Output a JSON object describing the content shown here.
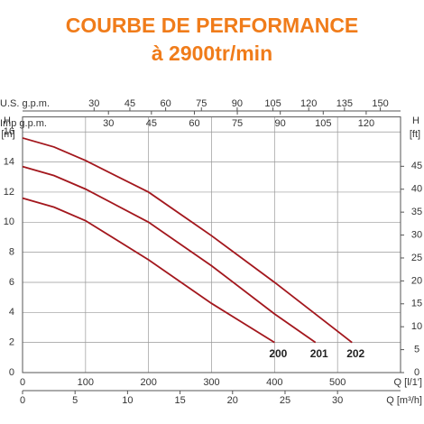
{
  "chart_data": {
    "type": "line",
    "title": "COURBE DE PERFORMANCE",
    "subtitle": "à 2900tr/min",
    "title_color": "#f07c1a",
    "xlabel": "Q [l/1']",
    "xlim": [
      0,
      600
    ],
    "xticks": [
      0,
      100,
      200,
      300,
      400,
      500
    ],
    "ylabel": [
      "H",
      "[m]"
    ],
    "ylim": [
      0,
      17
    ],
    "yticks": [
      0,
      2,
      4,
      6,
      8,
      10,
      12,
      14,
      16
    ],
    "y2label": [
      "H",
      "[ft]"
    ],
    "y2lim": [
      0,
      55.77
    ],
    "y2ticks": [
      0,
      5,
      10,
      15,
      20,
      25,
      30,
      35,
      40,
      45
    ],
    "extra_x_axes": [
      {
        "label": "Q [m³/h]",
        "position": "bottom",
        "lim": [
          0,
          36
        ],
        "ticks": [
          0,
          5,
          10,
          15,
          20,
          25,
          30
        ]
      },
      {
        "label": "U.S. g.p.m.",
        "position": "top",
        "lim": [
          0,
          158.5
        ],
        "ticks": [
          30,
          45,
          60,
          75,
          90,
          105,
          120,
          135,
          150
        ]
      },
      {
        "label": "Imp g.p.m.",
        "position": "top",
        "lim": [
          0,
          132
        ],
        "ticks": [
          30,
          45,
          60,
          75,
          90,
          105,
          120
        ]
      }
    ],
    "grid": true,
    "series": [
      {
        "name": "200",
        "color": "#a3171d",
        "x": [
          0,
          50,
          100,
          200,
          300,
          400
        ],
        "values": [
          11.6,
          11.0,
          10.1,
          7.5,
          4.6,
          2
        ]
      },
      {
        "name": "201",
        "color": "#a3171d",
        "x": [
          0,
          50,
          100,
          200,
          300,
          400,
          465
        ],
        "values": [
          13.7,
          13.1,
          12.2,
          10.0,
          7.1,
          3.9,
          2
        ]
      },
      {
        "name": "202",
        "color": "#a3171d",
        "x": [
          0,
          50,
          100,
          200,
          300,
          400,
          523
        ],
        "values": [
          15.6,
          15.0,
          14.1,
          12.0,
          9.1,
          6.0,
          2
        ]
      }
    ]
  }
}
